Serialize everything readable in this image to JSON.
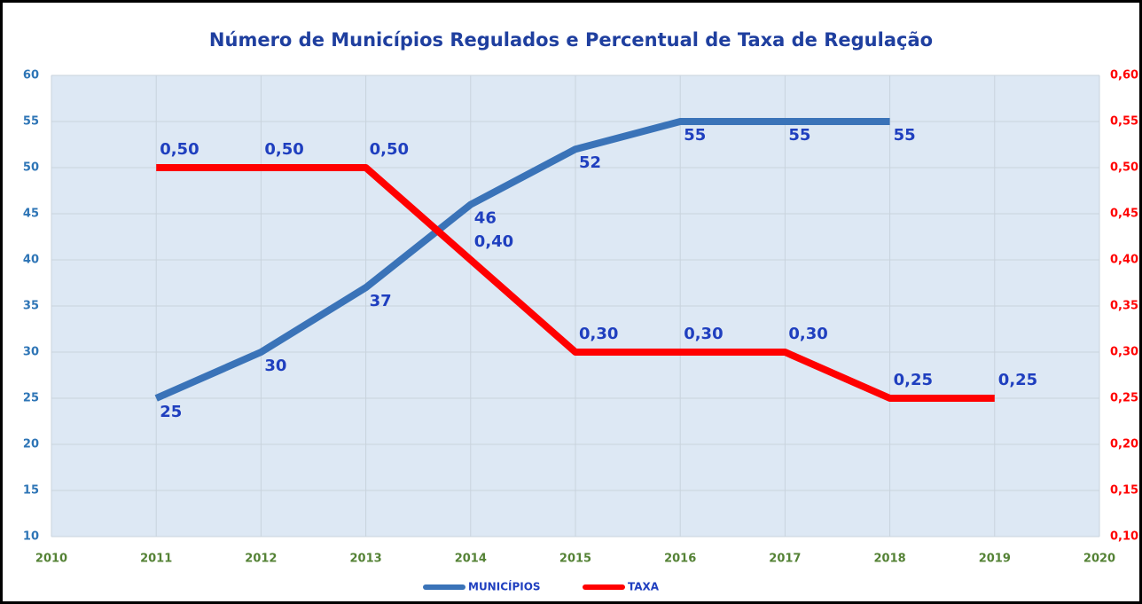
{
  "chart_data": {
    "type": "line",
    "title": "Número de Municípios Regulados e Percentual de Taxa de Regulação",
    "x": [
      2011,
      2012,
      2013,
      2014,
      2015,
      2016,
      2017,
      2018,
      2019
    ],
    "series": [
      {
        "name": "MUNICÍPIOS",
        "color": "#3a73b8",
        "values": [
          25,
          30,
          37,
          46,
          52,
          55,
          55,
          55,
          null
        ]
      },
      {
        "name": "TAXA",
        "color": "#ff0000",
        "axis": "y2",
        "values": [
          0.5,
          0.5,
          0.5,
          0.4,
          0.3,
          0.3,
          0.3,
          0.25,
          0.25
        ],
        "value_labels": [
          "0,50",
          "0,50",
          "0,50",
          "0,40",
          "0,30",
          "0,30",
          "0,30",
          "0,25",
          "0,25"
        ]
      }
    ],
    "xlim": [
      2010,
      2020
    ],
    "xticks": [
      2010,
      2011,
      2012,
      2013,
      2014,
      2015,
      2016,
      2017,
      2018,
      2019,
      2020
    ],
    "ylim": [
      10,
      60
    ],
    "yticks": [
      10,
      15,
      20,
      25,
      30,
      35,
      40,
      45,
      50,
      55,
      60
    ],
    "y2lim": [
      0.1,
      0.6
    ],
    "y2ticks": [
      {
        "value": 0.1,
        "label": "0,10"
      },
      {
        "value": 0.15,
        "label": "0,15"
      },
      {
        "value": 0.2,
        "label": "0,20"
      },
      {
        "value": 0.25,
        "label": "0,25"
      },
      {
        "value": 0.3,
        "label": "0,30"
      },
      {
        "value": 0.35,
        "label": "0,35"
      },
      {
        "value": 0.4,
        "label": "0,40"
      },
      {
        "value": 0.45,
        "label": "0,45"
      },
      {
        "value": 0.5,
        "label": "0,50"
      },
      {
        "value": 0.55,
        "label": "0,55"
      },
      {
        "value": 0.6,
        "label": "0,60"
      }
    ],
    "grid": true,
    "legend": "bottom"
  }
}
